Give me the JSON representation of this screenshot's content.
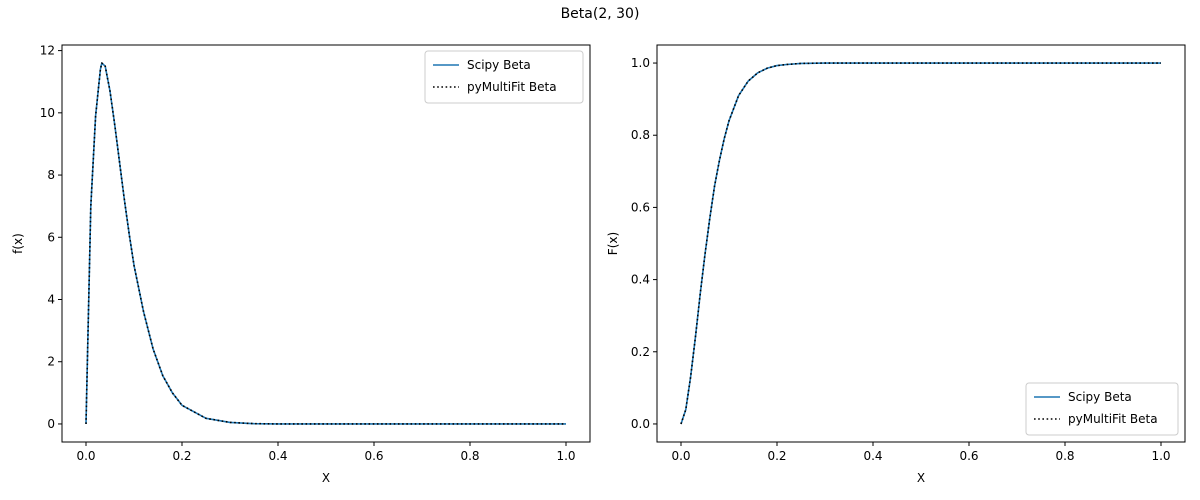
{
  "figure": {
    "title": "Beta(2, 30)"
  },
  "colors": {
    "scipy": "#1f77b4",
    "pymultifit": "#000000",
    "axes": "#000000",
    "legend_border": "#cccccc"
  },
  "chart_data": [
    {
      "type": "line",
      "title": "",
      "xlabel": "X",
      "ylabel": "f(x)",
      "xlim": [
        -0.05,
        1.05
      ],
      "ylim": [
        -0.58,
        12.18
      ],
      "xticks": [
        0.0,
        0.2,
        0.4,
        0.6,
        0.8,
        1.0
      ],
      "xtick_labels": [
        "0.0",
        "0.2",
        "0.4",
        "0.6",
        "0.8",
        "1.0"
      ],
      "yticks": [
        0,
        2,
        4,
        6,
        8,
        10,
        12
      ],
      "ytick_labels": [
        "0",
        "2",
        "4",
        "6",
        "8",
        "10",
        "12"
      ],
      "legend": "top-right",
      "grid": false,
      "series": [
        {
          "name": "Scipy Beta",
          "style": "solid",
          "x": [
            0.0,
            0.01,
            0.02,
            0.03,
            0.033,
            0.04,
            0.05,
            0.06,
            0.07,
            0.08,
            0.09,
            0.1,
            0.12,
            0.14,
            0.16,
            0.18,
            0.2,
            0.25,
            0.3,
            0.35,
            0.4,
            0.5,
            0.6,
            0.7,
            0.8,
            0.9,
            1.0
          ],
          "y": [
            0.0,
            7.0,
            9.9,
            11.4,
            11.6,
            11.5,
            10.7,
            9.6,
            8.4,
            7.2,
            6.1,
            5.1,
            3.6,
            2.4,
            1.55,
            1.0,
            0.6,
            0.18,
            0.05,
            0.01,
            0.0,
            0.0,
            0.0,
            0.0,
            0.0,
            0.0,
            0.0
          ]
        },
        {
          "name": "pyMultiFit Beta",
          "style": "dotted",
          "x": [
            0.0,
            0.01,
            0.02,
            0.03,
            0.033,
            0.04,
            0.05,
            0.06,
            0.07,
            0.08,
            0.09,
            0.1,
            0.12,
            0.14,
            0.16,
            0.18,
            0.2,
            0.25,
            0.3,
            0.35,
            0.4,
            0.5,
            0.6,
            0.7,
            0.8,
            0.9,
            1.0
          ],
          "y": [
            0.0,
            7.0,
            9.9,
            11.4,
            11.6,
            11.5,
            10.7,
            9.6,
            8.4,
            7.2,
            6.1,
            5.1,
            3.6,
            2.4,
            1.55,
            1.0,
            0.6,
            0.18,
            0.05,
            0.01,
            0.0,
            0.0,
            0.0,
            0.0,
            0.0,
            0.0,
            0.0
          ]
        }
      ]
    },
    {
      "type": "line",
      "title": "",
      "xlabel": "X",
      "ylabel": "F(x)",
      "xlim": [
        -0.05,
        1.05
      ],
      "ylim": [
        -0.05,
        1.05
      ],
      "xticks": [
        0.0,
        0.2,
        0.4,
        0.6,
        0.8,
        1.0
      ],
      "xtick_labels": [
        "0.0",
        "0.2",
        "0.4",
        "0.6",
        "0.8",
        "1.0"
      ],
      "yticks": [
        0.0,
        0.2,
        0.4,
        0.6,
        0.8,
        1.0
      ],
      "ytick_labels": [
        "0.0",
        "0.2",
        "0.4",
        "0.6",
        "0.8",
        "1.0"
      ],
      "legend": "bottom-right",
      "grid": false,
      "series": [
        {
          "name": "Scipy Beta",
          "style": "solid",
          "x": [
            0.0,
            0.01,
            0.02,
            0.03,
            0.04,
            0.05,
            0.06,
            0.07,
            0.08,
            0.09,
            0.1,
            0.12,
            0.14,
            0.16,
            0.18,
            0.2,
            0.22,
            0.25,
            0.3,
            0.4,
            0.5,
            0.6,
            0.7,
            0.8,
            0.9,
            1.0
          ],
          "y": [
            0.0,
            0.04,
            0.13,
            0.24,
            0.36,
            0.47,
            0.57,
            0.66,
            0.73,
            0.79,
            0.84,
            0.91,
            0.95,
            0.973,
            0.986,
            0.993,
            0.996,
            0.999,
            1.0,
            1.0,
            1.0,
            1.0,
            1.0,
            1.0,
            1.0,
            1.0
          ]
        },
        {
          "name": "pyMultiFit Beta",
          "style": "dotted",
          "x": [
            0.0,
            0.01,
            0.02,
            0.03,
            0.04,
            0.05,
            0.06,
            0.07,
            0.08,
            0.09,
            0.1,
            0.12,
            0.14,
            0.16,
            0.18,
            0.2,
            0.22,
            0.25,
            0.3,
            0.4,
            0.5,
            0.6,
            0.7,
            0.8,
            0.9,
            1.0
          ],
          "y": [
            0.0,
            0.04,
            0.13,
            0.24,
            0.36,
            0.47,
            0.57,
            0.66,
            0.73,
            0.79,
            0.84,
            0.91,
            0.95,
            0.973,
            0.986,
            0.993,
            0.996,
            0.999,
            1.0,
            1.0,
            1.0,
            1.0,
            1.0,
            1.0,
            1.0,
            1.0
          ]
        }
      ]
    }
  ]
}
